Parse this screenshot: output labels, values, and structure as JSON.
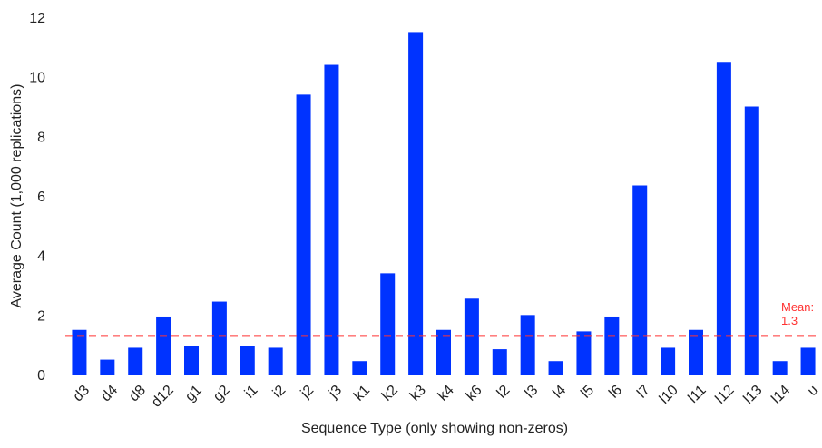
{
  "chart_data": {
    "type": "bar",
    "xlabel": "Sequence Type (only showing non-zeros)",
    "ylabel": "Average Count (1,000 replications)",
    "ylim": [
      0,
      12
    ],
    "yticks": [
      0,
      2,
      4,
      6,
      8,
      10,
      12
    ],
    "grid": false,
    "categories": [
      "d3",
      "d4",
      "d8",
      "d12",
      "g1",
      "g2",
      "i1",
      "i2",
      "j2",
      "j3",
      "k1",
      "k2",
      "k3",
      "k4",
      "k6",
      "l2",
      "l3",
      "l4",
      "l5",
      "l6",
      "l7",
      "l10",
      "l11",
      "l12",
      "l13",
      "l14",
      "u"
    ],
    "values": [
      1.5,
      0.5,
      0.9,
      1.95,
      0.95,
      2.45,
      0.95,
      0.9,
      9.4,
      10.4,
      0.45,
      3.4,
      11.5,
      1.5,
      2.55,
      0.85,
      2.0,
      0.45,
      1.45,
      1.95,
      6.35,
      0.9,
      1.5,
      10.5,
      9.0,
      0.45,
      0.9
    ],
    "bar_color": "#0033ff",
    "reference_line": {
      "value": 1.3,
      "label_line1": "Mean:",
      "label_line2": "1.3",
      "color": "#ff3333",
      "style": "dashed"
    }
  }
}
